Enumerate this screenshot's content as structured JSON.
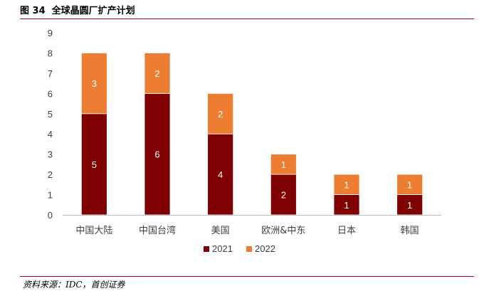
{
  "figure": {
    "title": "图 34  全球晶圆厂扩产计划",
    "source": "资料来源：IDC，首创证券"
  },
  "colors": {
    "s2021": "#7f0000",
    "s2022": "#ed7d31",
    "rule": "#b3001b"
  },
  "chart_data": {
    "type": "bar",
    "stacked": true,
    "categories": [
      "中国大陆",
      "中国台湾",
      "美国",
      "欧洲&中东",
      "日本",
      "韩国"
    ],
    "series": [
      {
        "name": "2021",
        "values": [
          5,
          6,
          4,
          2,
          1,
          1
        ]
      },
      {
        "name": "2022",
        "values": [
          3,
          2,
          2,
          1,
          1,
          1
        ]
      }
    ],
    "ylim": [
      0,
      9
    ],
    "yticks": [
      0,
      1,
      2,
      3,
      4,
      5,
      6,
      7,
      8,
      9
    ],
    "grid": false,
    "legend": "bottom"
  }
}
